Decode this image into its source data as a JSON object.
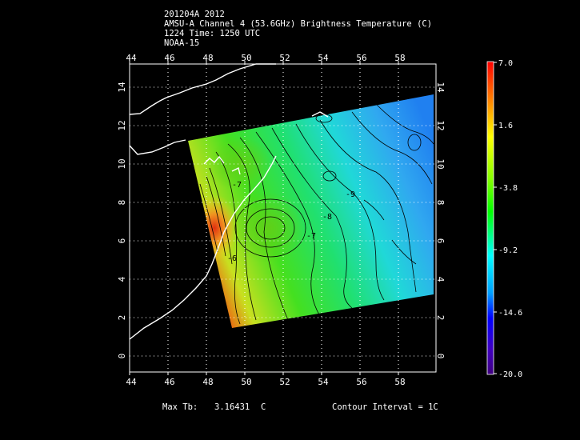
{
  "header": {
    "line1": "201204A 2012",
    "line2": "AMSU-A Channel 4 (53.6GHz) Brightness Temperature (C)",
    "line3": "1224 Time: 1250 UTC",
    "line4": "NOAA-15"
  },
  "axes": {
    "lon_ticks": [
      "44",
      "46",
      "48",
      "50",
      "52",
      "54",
      "56",
      "58"
    ],
    "lat_ticks": [
      "0",
      "2",
      "4",
      "6",
      "8",
      "10",
      "12",
      "14"
    ]
  },
  "contour_labels": [
    "-9",
    "-8",
    "-7",
    "-6",
    "-7"
  ],
  "colorbar": {
    "labels": [
      "7.0",
      "1.6",
      "-3.8",
      "-9.2",
      "-14.6",
      "-20.0"
    ],
    "min": -20.0,
    "max": 7.0
  },
  "footer": {
    "max_label": "Max Tb:",
    "max_value": "3.16431",
    "max_unit": "C",
    "contour_interval": "Contour Interval = 1C"
  },
  "colors": {
    "background": "#000000",
    "coastline": "#ffffff",
    "grid": "#ffffff",
    "contour": "#000000"
  }
}
